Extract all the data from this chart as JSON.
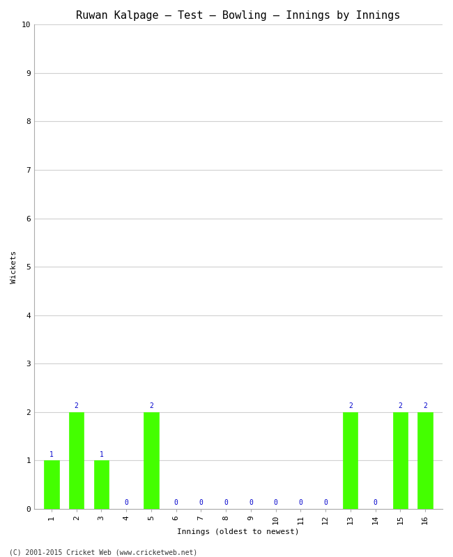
{
  "title": "Ruwan Kalpage – Test – Bowling – Innings by Innings",
  "xlabel": "Innings (oldest to newest)",
  "ylabel": "Wickets",
  "innings": [
    1,
    2,
    3,
    4,
    5,
    6,
    7,
    8,
    9,
    10,
    11,
    12,
    13,
    14,
    15,
    16
  ],
  "wickets": [
    1,
    2,
    1,
    0,
    2,
    0,
    0,
    0,
    0,
    0,
    0,
    0,
    2,
    0,
    2,
    2
  ],
  "bar_color": "#44ff00",
  "label_color": "#0000cc",
  "ylim": [
    0,
    10
  ],
  "yticks": [
    0,
    1,
    2,
    3,
    4,
    5,
    6,
    7,
    8,
    9,
    10
  ],
  "bg_color": "#ffffff",
  "grid_color": "#d0d0d0",
  "footer": "(C) 2001-2015 Cricket Web (www.cricketweb.net)",
  "title_fontsize": 11,
  "axis_label_fontsize": 8,
  "tick_fontsize": 8,
  "bar_label_fontsize": 7,
  "footer_fontsize": 7
}
